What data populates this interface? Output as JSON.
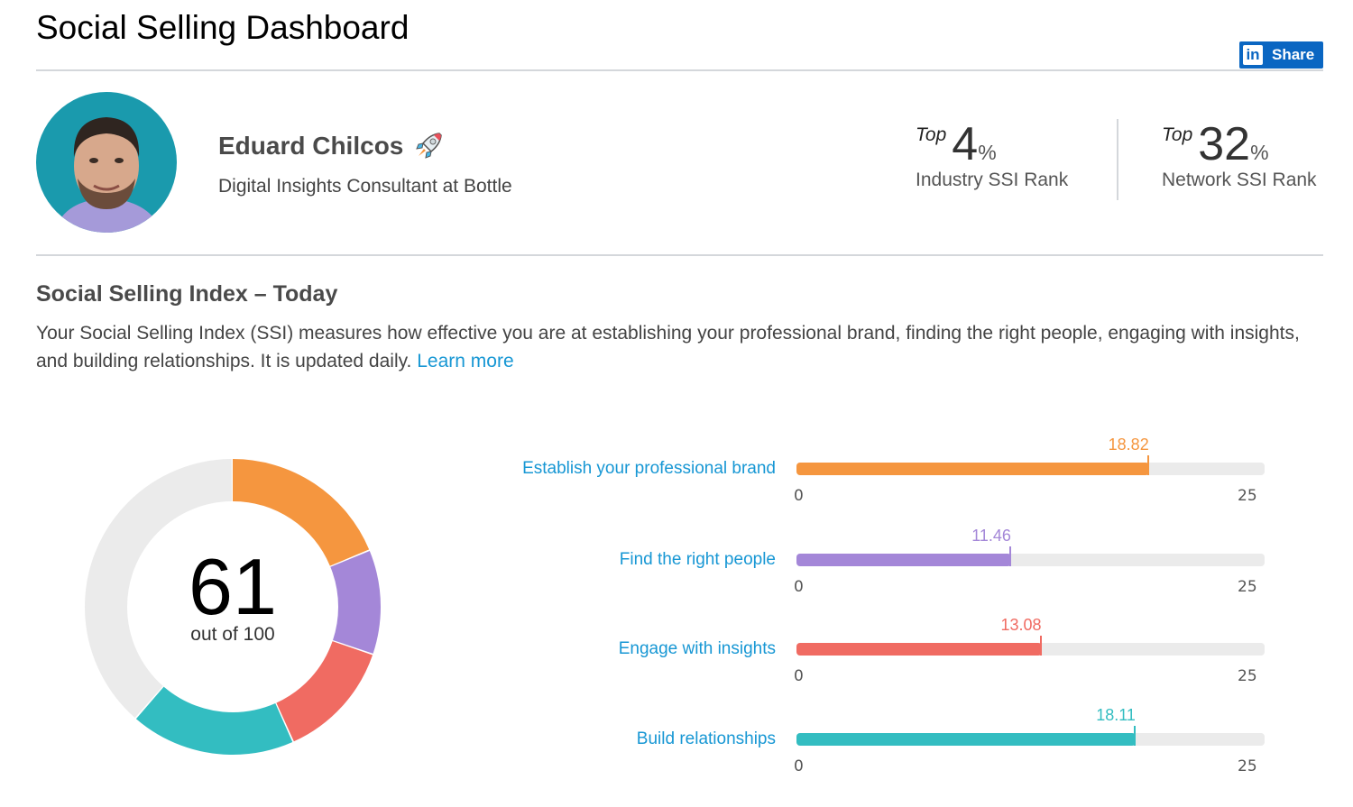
{
  "header": {
    "title": "Social Selling Dashboard",
    "share_label": "Share",
    "share_logo": "in"
  },
  "profile": {
    "name": "Eduard Chilcos",
    "name_icon": "rocket-icon",
    "headline": "Digital Insights Consultant at Bottle",
    "avatar_bg": "#1a9aad"
  },
  "ranks": [
    {
      "prefix": "Top",
      "value": "4",
      "unit": "%",
      "label": "Industry SSI Rank"
    },
    {
      "prefix": "Top",
      "value": "32",
      "unit": "%",
      "label": "Network SSI Rank"
    }
  ],
  "ssi": {
    "title": "Social Selling Index – Today",
    "description": "Your Social Selling Index (SSI) measures how effective you are at establishing your professional brand, finding the right people, engaging with insights, and building relationships. It is updated daily.",
    "learn_more": "Learn more",
    "score": "61",
    "score_sub": "out of 100",
    "remainder_color": "#ebebeb",
    "axis_min": "0",
    "axis_max": "25",
    "components": [
      {
        "label": "Establish your professional brand",
        "value": 18.82,
        "value_text": "18.82",
        "color": "#f5963f"
      },
      {
        "label": "Find the right people",
        "value": 11.46,
        "value_text": "11.46",
        "color": "#a487d8"
      },
      {
        "label": "Engage with insights",
        "value": 13.08,
        "value_text": "13.08",
        "color": "#f06b62"
      },
      {
        "label": "Build relationships",
        "value": 18.11,
        "value_text": "18.11",
        "color": "#33bdc1"
      }
    ]
  },
  "chart_data": [
    {
      "type": "pie",
      "title": "Social Selling Index",
      "center_label": "61 out of 100",
      "categories": [
        "Establish your professional brand",
        "Find the right people",
        "Engage with insights",
        "Build relationships",
        "Remaining"
      ],
      "values": [
        18.82,
        11.46,
        13.08,
        18.11,
        38.53
      ],
      "colors": [
        "#f5963f",
        "#a487d8",
        "#f06b62",
        "#33bdc1",
        "#ebebeb"
      ]
    },
    {
      "type": "bar",
      "orientation": "horizontal",
      "categories": [
        "Establish your professional brand",
        "Find the right people",
        "Engage with insights",
        "Build relationships"
      ],
      "values": [
        18.82,
        11.46,
        13.08,
        18.11
      ],
      "xlim": [
        0,
        25
      ],
      "xlabel": "",
      "ylabel": ""
    }
  ]
}
